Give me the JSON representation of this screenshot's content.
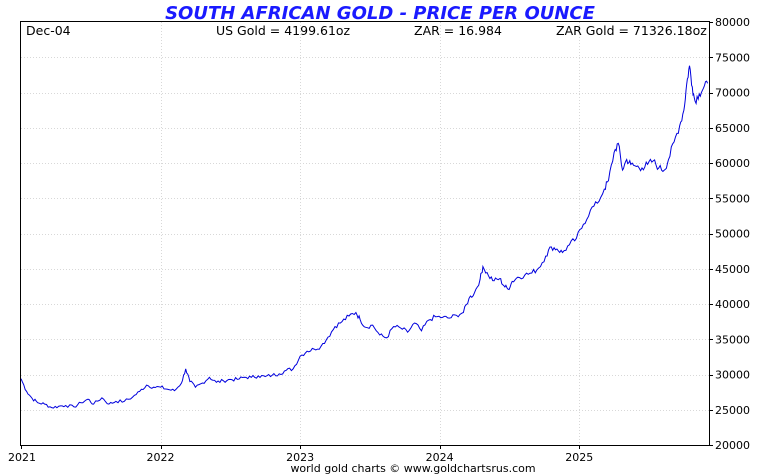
{
  "chart_data": {
    "type": "line",
    "title": "SOUTH AFRICAN GOLD - PRICE PER OUNCE",
    "header": {
      "date": "Dec-04",
      "us_gold": "US Gold = 4199.61oz",
      "zar": "ZAR = 16.984",
      "zar_gold": "ZAR Gold = 71326.18oz"
    },
    "credit": "world gold charts © www.goldchartsrus.com",
    "xlim": [
      2021,
      2025.93
    ],
    "ylim": [
      20000,
      80000
    ],
    "x_ticks": [
      {
        "v": 2021,
        "label": "2021"
      },
      {
        "v": 2022,
        "label": "2022"
      },
      {
        "v": 2023,
        "label": "2023"
      },
      {
        "v": 2024,
        "label": "2024"
      },
      {
        "v": 2025,
        "label": "2025"
      }
    ],
    "y_ticks": [
      {
        "v": 20000,
        "label": "20000"
      },
      {
        "v": 25000,
        "label": "25000"
      },
      {
        "v": 30000,
        "label": "30000"
      },
      {
        "v": 35000,
        "label": "35000"
      },
      {
        "v": 40000,
        "label": "40000"
      },
      {
        "v": 45000,
        "label": "45000"
      },
      {
        "v": 50000,
        "label": "50000"
      },
      {
        "v": 55000,
        "label": "55000"
      },
      {
        "v": 60000,
        "label": "60000"
      },
      {
        "v": 65000,
        "label": "65000"
      },
      {
        "v": 70000,
        "label": "70000"
      },
      {
        "v": 75000,
        "label": "75000"
      },
      {
        "v": 80000,
        "label": "80000"
      }
    ],
    "grid": true,
    "series_color": "#0000dd",
    "series": [
      {
        "points": [
          [
            2021.0,
            29400
          ],
          [
            2021.04,
            27600
          ],
          [
            2021.08,
            26600
          ],
          [
            2021.12,
            26000
          ],
          [
            2021.17,
            25800
          ],
          [
            2021.22,
            25300
          ],
          [
            2021.27,
            25500
          ],
          [
            2021.32,
            25600
          ],
          [
            2021.38,
            25400
          ],
          [
            2021.43,
            26000
          ],
          [
            2021.48,
            26500
          ],
          [
            2021.52,
            25800
          ],
          [
            2021.58,
            26700
          ],
          [
            2021.63,
            25800
          ],
          [
            2021.68,
            26200
          ],
          [
            2021.74,
            26200
          ],
          [
            2021.8,
            26800
          ],
          [
            2021.85,
            27600
          ],
          [
            2021.9,
            28500
          ],
          [
            2021.95,
            28200
          ],
          [
            2022.0,
            28200
          ],
          [
            2022.05,
            27900
          ],
          [
            2022.1,
            27700
          ],
          [
            2022.15,
            28800
          ],
          [
            2022.18,
            30800
          ],
          [
            2022.21,
            29000
          ],
          [
            2022.25,
            28200
          ],
          [
            2022.3,
            28800
          ],
          [
            2022.35,
            29600
          ],
          [
            2022.4,
            28900
          ],
          [
            2022.45,
            29100
          ],
          [
            2022.5,
            29300
          ],
          [
            2022.55,
            29300
          ],
          [
            2022.6,
            29600
          ],
          [
            2022.65,
            29600
          ],
          [
            2022.7,
            29800
          ],
          [
            2022.75,
            29700
          ],
          [
            2022.8,
            29900
          ],
          [
            2022.85,
            30100
          ],
          [
            2022.9,
            30600
          ],
          [
            2022.95,
            30800
          ],
          [
            2023.0,
            32600
          ],
          [
            2023.05,
            33300
          ],
          [
            2023.1,
            33600
          ],
          [
            2023.15,
            34000
          ],
          [
            2023.2,
            35300
          ],
          [
            2023.25,
            36800
          ],
          [
            2023.3,
            37500
          ],
          [
            2023.35,
            38300
          ],
          [
            2023.4,
            38800
          ],
          [
            2023.43,
            37800
          ],
          [
            2023.47,
            36700
          ],
          [
            2023.52,
            37000
          ],
          [
            2023.57,
            35600
          ],
          [
            2023.62,
            35200
          ],
          [
            2023.67,
            36800
          ],
          [
            2023.72,
            36600
          ],
          [
            2023.77,
            36000
          ],
          [
            2023.82,
            37300
          ],
          [
            2023.87,
            36200
          ],
          [
            2023.92,
            37700
          ],
          [
            2023.97,
            38200
          ],
          [
            2024.02,
            38100
          ],
          [
            2024.07,
            38000
          ],
          [
            2024.12,
            38400
          ],
          [
            2024.17,
            38800
          ],
          [
            2024.21,
            40800
          ],
          [
            2024.25,
            41600
          ],
          [
            2024.29,
            43500
          ],
          [
            2024.31,
            45300
          ],
          [
            2024.35,
            44000
          ],
          [
            2024.39,
            43300
          ],
          [
            2024.43,
            43600
          ],
          [
            2024.46,
            42600
          ],
          [
            2024.49,
            42100
          ],
          [
            2024.52,
            43200
          ],
          [
            2024.56,
            43800
          ],
          [
            2024.61,
            44100
          ],
          [
            2024.66,
            44400
          ],
          [
            2024.71,
            45100
          ],
          [
            2024.76,
            46800
          ],
          [
            2024.8,
            48100
          ],
          [
            2024.84,
            47800
          ],
          [
            2024.88,
            47300
          ],
          [
            2024.93,
            48400
          ],
          [
            2024.98,
            49300
          ],
          [
            2025.03,
            51300
          ],
          [
            2025.08,
            53300
          ],
          [
            2025.13,
            54300
          ],
          [
            2025.18,
            56300
          ],
          [
            2025.21,
            57500
          ],
          [
            2025.25,
            61500
          ],
          [
            2025.28,
            62800
          ],
          [
            2025.31,
            59000
          ],
          [
            2025.34,
            60500
          ],
          [
            2025.37,
            59800
          ],
          [
            2025.41,
            59500
          ],
          [
            2025.45,
            59300
          ],
          [
            2025.49,
            59800
          ],
          [
            2025.53,
            60300
          ],
          [
            2025.57,
            59300
          ],
          [
            2025.61,
            59000
          ],
          [
            2025.64,
            60500
          ],
          [
            2025.68,
            63000
          ],
          [
            2025.72,
            65300
          ],
          [
            2025.75,
            67500
          ],
          [
            2025.77,
            71200
          ],
          [
            2025.79,
            73800
          ],
          [
            2025.81,
            70800
          ],
          [
            2025.83,
            68800
          ],
          [
            2025.86,
            69800
          ],
          [
            2025.89,
            70600
          ],
          [
            2025.92,
            71300
          ]
        ]
      }
    ]
  }
}
